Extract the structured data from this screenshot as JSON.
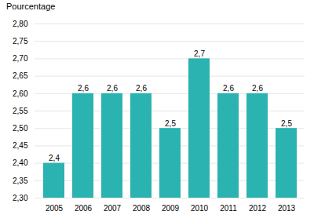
{
  "chart_data": {
    "type": "bar",
    "ylabel": "Pourcentage",
    "categories": [
      "2005",
      "2006",
      "2007",
      "2008",
      "2009",
      "2010",
      "2011",
      "2012",
      "2013"
    ],
    "values": [
      2.4,
      2.6,
      2.6,
      2.6,
      2.5,
      2.7,
      2.6,
      2.6,
      2.5
    ],
    "value_labels": [
      "2,4",
      "2,6",
      "2,6",
      "2,6",
      "2,5",
      "2,7",
      "2,6",
      "2,6",
      "2,5"
    ],
    "data_labels": true,
    "color": "#2ab3b0",
    "ylim": [
      2.3,
      2.8
    ],
    "yticks": [
      {
        "value": 2.3,
        "label": "2,30"
      },
      {
        "value": 2.35,
        "label": "2,35"
      },
      {
        "value": 2.4,
        "label": "2,40"
      },
      {
        "value": 2.45,
        "label": "2,45"
      },
      {
        "value": 2.5,
        "label": "2,50"
      },
      {
        "value": 2.55,
        "label": "2,55"
      },
      {
        "value": 2.6,
        "label": "2,60"
      },
      {
        "value": 2.65,
        "label": "2,65"
      },
      {
        "value": 2.7,
        "label": "2,70"
      },
      {
        "value": 2.75,
        "label": "2,75"
      },
      {
        "value": 2.8,
        "label": "2,80"
      }
    ],
    "grid": true
  }
}
